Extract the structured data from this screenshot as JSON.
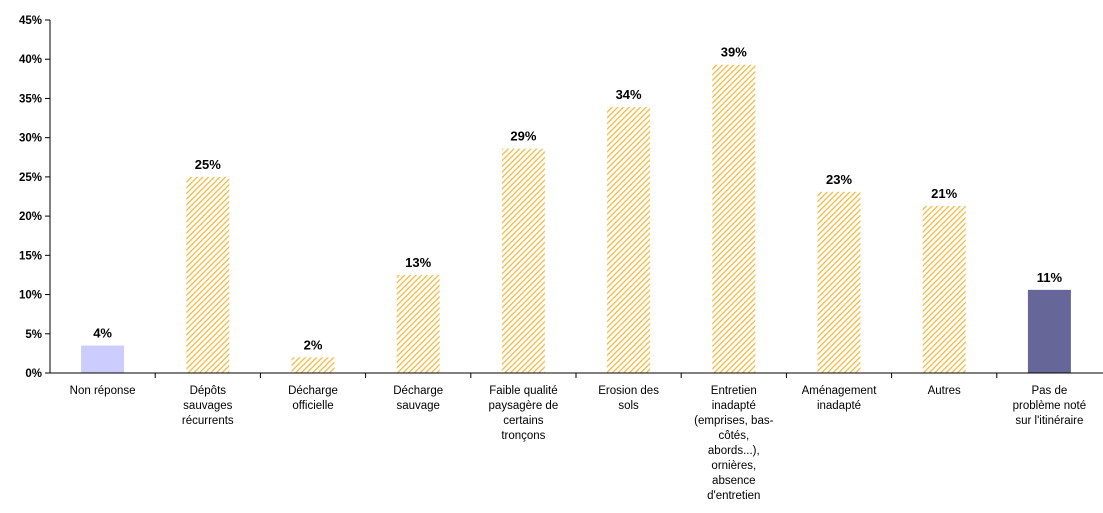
{
  "chart_data": {
    "type": "bar",
    "categories": [
      "Non réponse",
      "Dépôts\nsauvages\nrécurrents",
      "Décharge\nofficielle",
      "Décharge\nsauvage",
      "Faible qualité\npaysagère de\ncertains\ntronçons",
      "Erosion des\nsols",
      "Entretien\ninadapté\n(emprises, bas-\ncôtés,\nabords...),\nornières,\nabsence\nd'entretien",
      "Aménagement\ninadapté",
      "Autres",
      "Pas de\nproblème noté\nsur l'itinéraire"
    ],
    "values": [
      3.5,
      25,
      2,
      12.5,
      28.6,
      33.9,
      39.3,
      23.1,
      21.3,
      10.6
    ],
    "data_labels": [
      "4%",
      "25%",
      "2%",
      "13%",
      "29%",
      "34%",
      "39%",
      "23%",
      "21%",
      "11%"
    ],
    "bar_styles": [
      "solid-light",
      "hatched",
      "hatched",
      "hatched",
      "hatched",
      "hatched",
      "hatched",
      "hatched",
      "hatched",
      "solid-dark"
    ],
    "colors": {
      "solid-light": "#ccccff",
      "hatched": "#f4b942",
      "hatched_bg": "#ffffff",
      "solid-dark": "#666699",
      "axis": "#000000"
    },
    "yticks": [
      "0%",
      "5%",
      "10%",
      "15%",
      "20%",
      "25%",
      "30%",
      "35%",
      "40%",
      "45%"
    ],
    "ylim": [
      0,
      45
    ],
    "grid": false,
    "title": "",
    "xlabel": "",
    "ylabel": ""
  }
}
